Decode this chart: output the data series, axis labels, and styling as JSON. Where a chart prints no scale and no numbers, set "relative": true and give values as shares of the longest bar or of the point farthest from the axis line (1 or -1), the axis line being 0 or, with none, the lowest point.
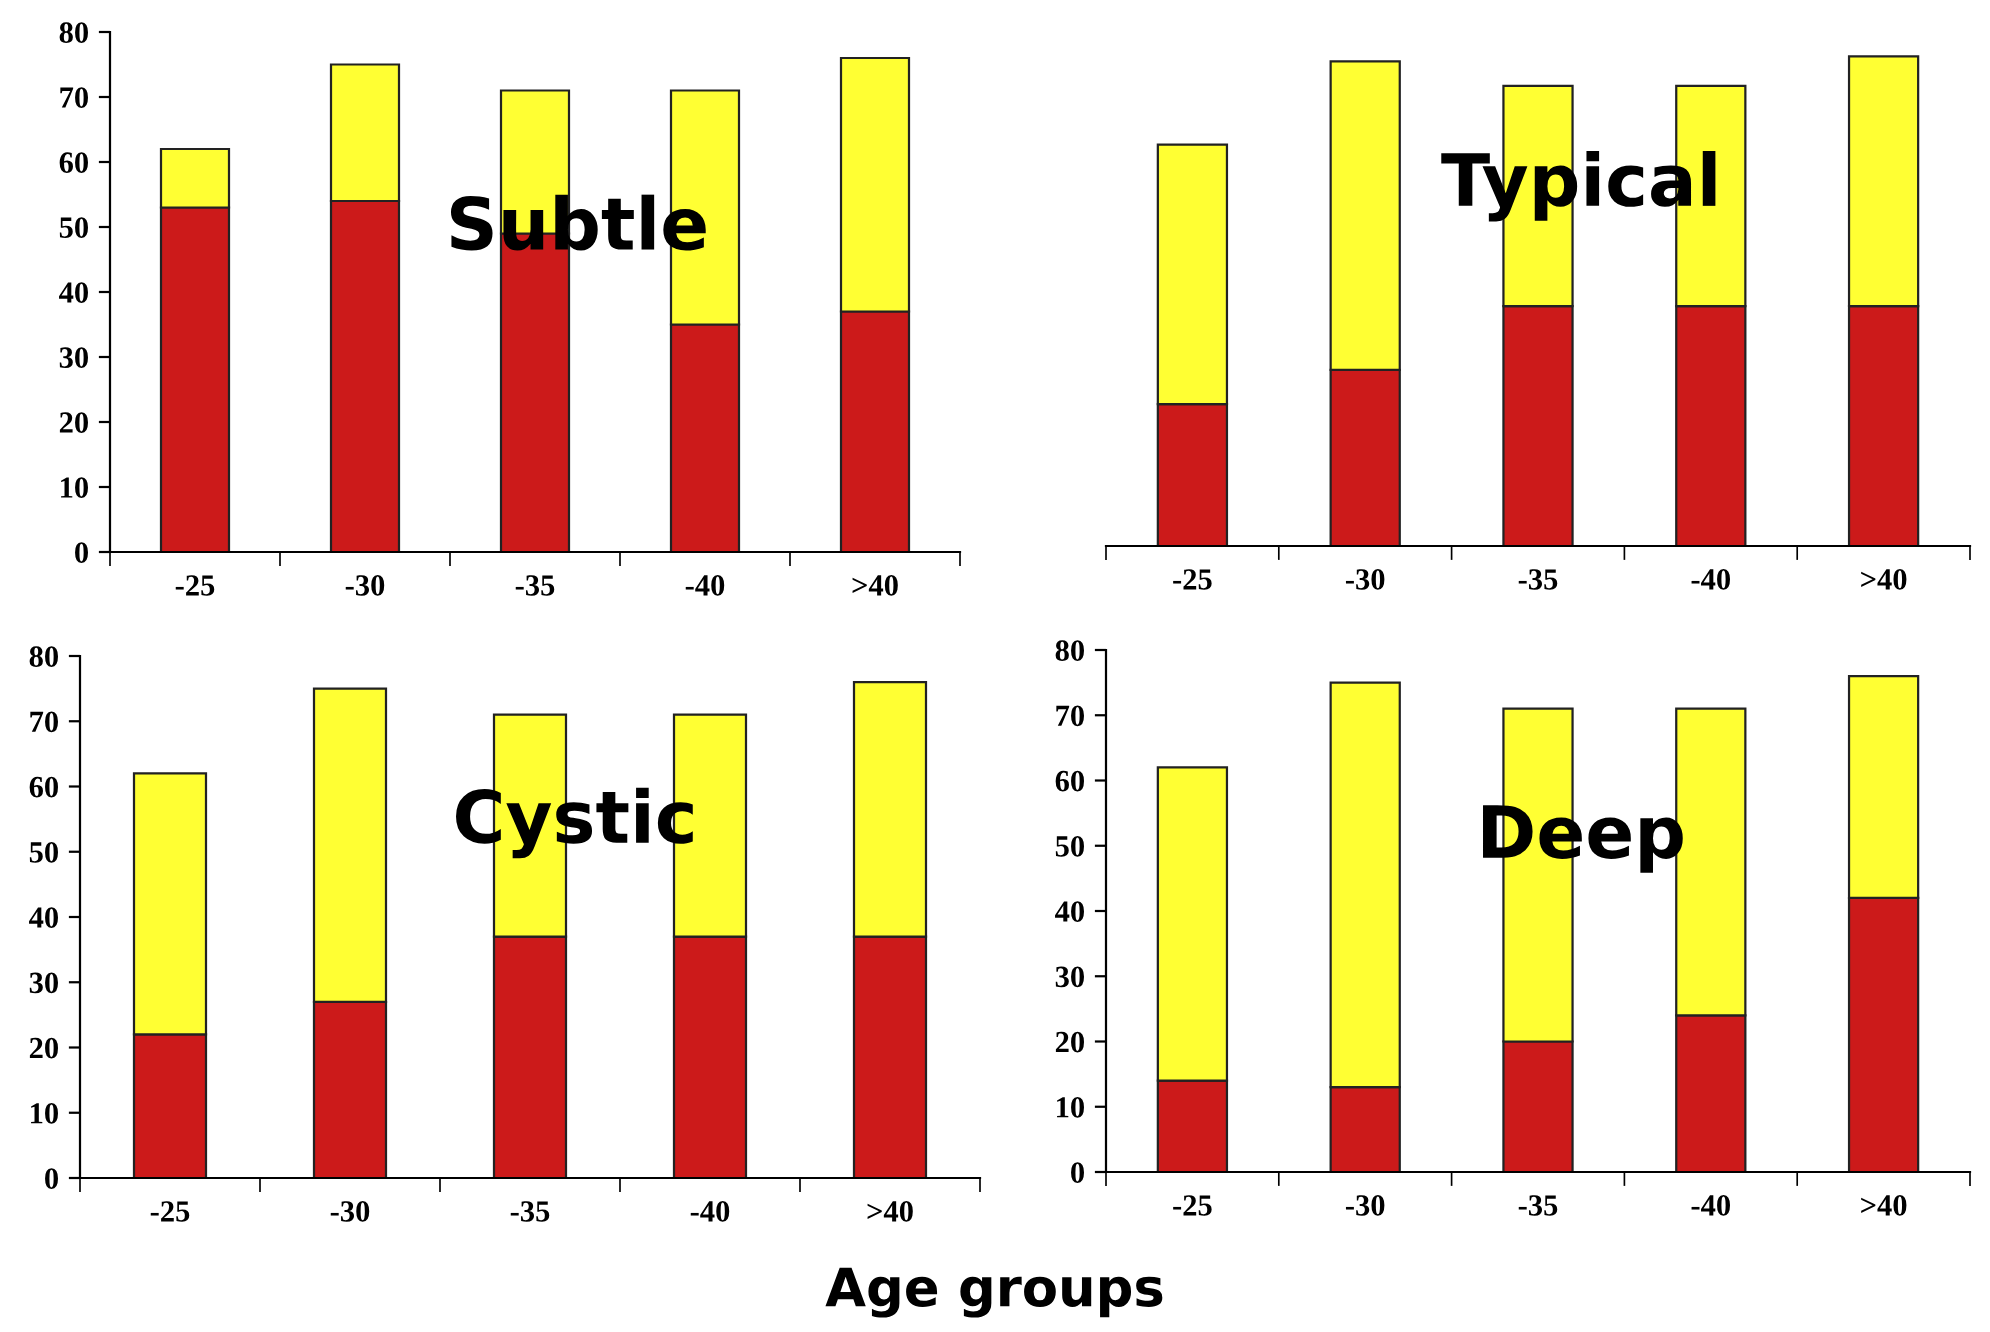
{
  "chart_data": [
    {
      "type": "bar",
      "title": "Subtle",
      "stacked": true,
      "categories": [
        "-25",
        "-30",
        "-35",
        "-40",
        ">40"
      ],
      "ylim": [
        0,
        80
      ],
      "yticks": [
        0,
        10,
        20,
        30,
        40,
        50,
        60,
        70,
        80
      ],
      "grid": false,
      "legend": false,
      "series": [
        {
          "color": "#cc1a1a",
          "values": [
            53,
            54,
            49,
            35,
            37
          ]
        },
        {
          "color": "#ffff33",
          "values": [
            9,
            21,
            22,
            36,
            39
          ]
        }
      ]
    },
    {
      "type": "bar",
      "title": "Typical",
      "stacked": true,
      "relative": true,
      "categories": [
        "-25",
        "-30",
        "-35",
        "-40",
        ">40"
      ],
      "grid": false,
      "legend": false,
      "series": [
        {
          "color": "#cc1a1a",
          "values": [
            0.29,
            0.36,
            0.49,
            0.49,
            0.49
          ]
        },
        {
          "color": "#ffff33",
          "values": [
            0.53,
            0.63,
            0.45,
            0.45,
            0.51
          ]
        }
      ]
    },
    {
      "type": "bar",
      "title": "Cystic",
      "stacked": true,
      "categories": [
        "-25",
        "-30",
        "-35",
        "-40",
        ">40"
      ],
      "ylim": [
        0,
        80
      ],
      "yticks": [
        0,
        10,
        20,
        30,
        40,
        50,
        60,
        70,
        80
      ],
      "grid": false,
      "legend": false,
      "series": [
        {
          "color": "#cc1a1a",
          "values": [
            22,
            27,
            37,
            37,
            37
          ]
        },
        {
          "color": "#ffff33",
          "values": [
            40,
            48,
            34,
            34,
            39
          ]
        }
      ]
    },
    {
      "type": "bar",
      "title": "Deep",
      "stacked": true,
      "categories": [
        "-25",
        "-30",
        "-35",
        "-40",
        ">40"
      ],
      "ylim": [
        0,
        80
      ],
      "yticks": [
        0,
        10,
        20,
        30,
        40,
        50,
        60,
        70,
        80
      ],
      "grid": false,
      "legend": false,
      "annotations": [
        "Age groups"
      ],
      "series": [
        {
          "color": "#cc1a1a",
          "values": [
            14,
            13,
            20,
            24,
            42
          ]
        },
        {
          "color": "#ffff33",
          "values": [
            48,
            62,
            51,
            47,
            34
          ]
        }
      ]
    }
  ]
}
